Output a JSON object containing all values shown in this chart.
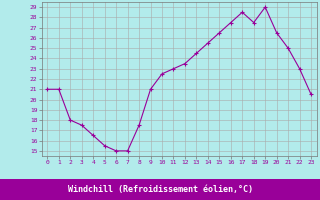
{
  "x": [
    0,
    1,
    2,
    3,
    4,
    5,
    6,
    7,
    8,
    9,
    10,
    11,
    12,
    13,
    14,
    15,
    16,
    17,
    18,
    19,
    20,
    21,
    22,
    23
  ],
  "y": [
    21,
    21,
    18,
    17.5,
    16.5,
    15.5,
    15,
    15,
    17.5,
    21,
    22.5,
    23,
    23.5,
    24.5,
    25.5,
    26.5,
    27.5,
    28.5,
    27.5,
    29,
    26.5,
    25,
    23,
    20.5
  ],
  "line_color": "#990099",
  "marker": "+",
  "marker_size": 3,
  "bg_color": "#b2ebeb",
  "grid_color": "#aaaaaa",
  "xlabel": "Windchill (Refroidissement éolien,°C)",
  "xlabel_color": "#ffffff",
  "xlabel_bg": "#990099",
  "ylabel_ticks": [
    15,
    16,
    17,
    18,
    19,
    20,
    21,
    22,
    23,
    24,
    25,
    26,
    27,
    28,
    29
  ],
  "xticks": [
    0,
    1,
    2,
    3,
    4,
    5,
    6,
    7,
    8,
    9,
    10,
    11,
    12,
    13,
    14,
    15,
    16,
    17,
    18,
    19,
    20,
    21,
    22,
    23
  ],
  "ylim": [
    14.5,
    29.5
  ],
  "xlim": [
    -0.5,
    23.5
  ],
  "tick_label_color": "#990099",
  "tick_label_fontsize": 4.5,
  "xlabel_fontsize": 6.0,
  "linewidth": 0.8
}
